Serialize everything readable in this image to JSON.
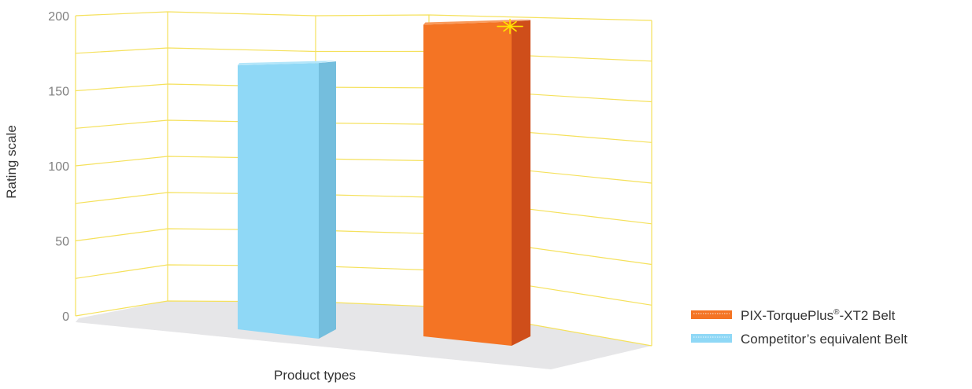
{
  "chart_data": {
    "type": "bar",
    "title": "",
    "xlabel": "Product types",
    "ylabel": "Rating scale",
    "ylim": [
      0,
      200
    ],
    "yticks": [
      0,
      50,
      100,
      150,
      200
    ],
    "grid": true,
    "legend_position": "bottom-right",
    "series": [
      {
        "name": "Competitor’s equivalent Belt",
        "value": 168,
        "color": "#8fd8f6",
        "side_color": "#74bedd",
        "top_color": "#b4e6fa"
      },
      {
        "name": "PIX-TorquePlus®-XT2 Belt",
        "name_main": "PIX-TorquePlus",
        "name_sup": "®",
        "name_rest": "-XT2 Belt",
        "value": 195,
        "color": "#f47424",
        "side_color": "#cf4e1a",
        "top_color": "#f89a5c"
      }
    ],
    "legend": [
      {
        "series": 1
      },
      {
        "series": 0
      }
    ],
    "colors": {
      "grid": "#f5e15c",
      "floor": "#e6e6e8",
      "star": "#ffe400"
    }
  }
}
